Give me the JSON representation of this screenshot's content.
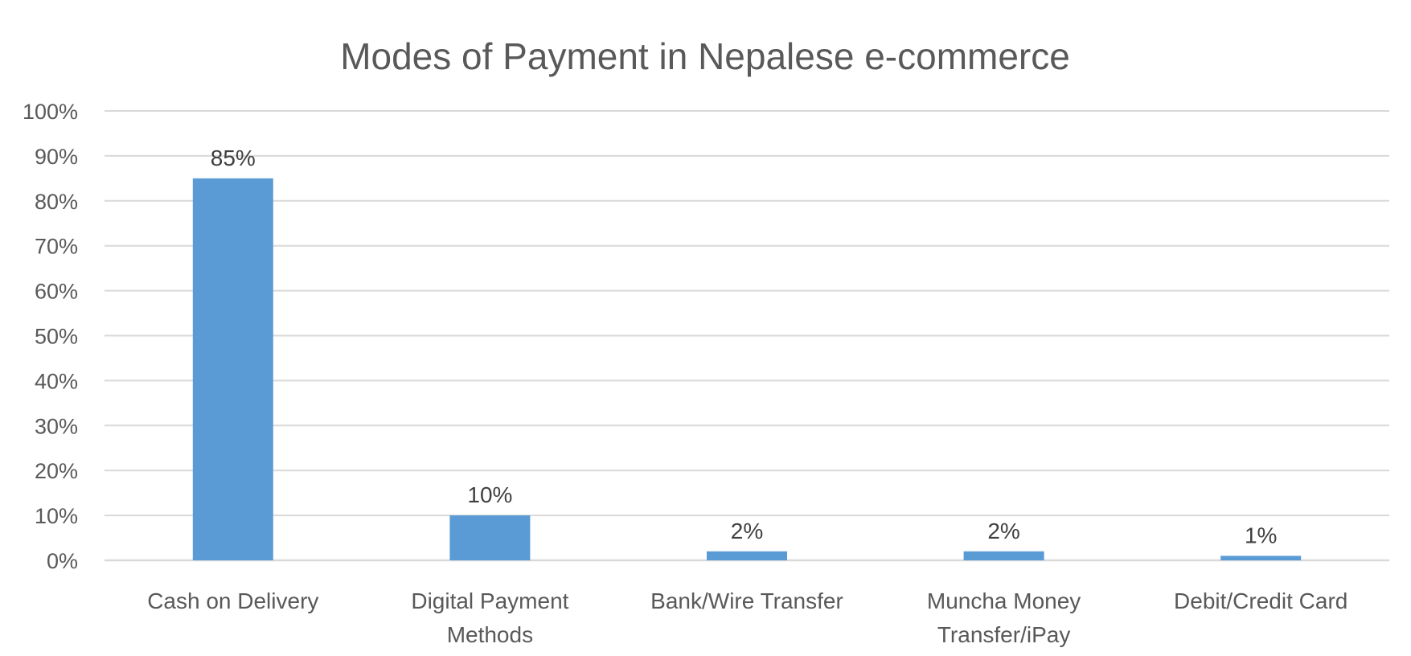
{
  "chart_data": {
    "type": "bar",
    "title": "Modes of Payment in Nepalese e-commerce",
    "xlabel": "",
    "ylabel": "",
    "categories": [
      [
        "Cash on Delivery"
      ],
      [
        "Digital Payment",
        "Methods"
      ],
      [
        "Bank/Wire Transfer"
      ],
      [
        "Muncha Money",
        "Transfer/iPay"
      ],
      [
        "Debit/Credit Card"
      ]
    ],
    "values": [
      85,
      10,
      2,
      2,
      1
    ],
    "data_labels": [
      "85%",
      "10%",
      "2%",
      "2%",
      "1%"
    ],
    "ylim": [
      0,
      100
    ],
    "yticks": [
      0,
      10,
      20,
      30,
      40,
      50,
      60,
      70,
      80,
      90,
      100
    ],
    "ytick_labels": [
      "0%",
      "10%",
      "20%",
      "30%",
      "40%",
      "50%",
      "60%",
      "70%",
      "80%",
      "90%",
      "100%"
    ],
    "grid": true,
    "legend": "none",
    "colors": {
      "bar": "#5B9BD5",
      "grid": "#D9D9D9",
      "text": "#595959",
      "label": "#404040"
    }
  }
}
